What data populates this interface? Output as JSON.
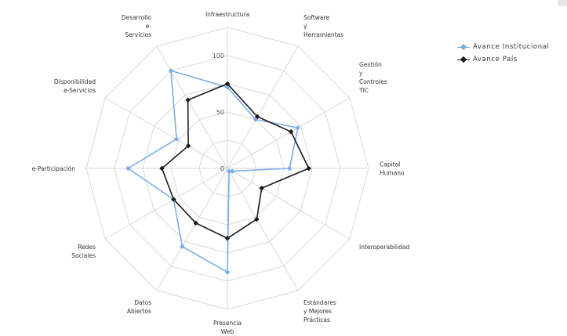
{
  "chart_data": {
    "type": "radar",
    "title": "",
    "categories": [
      "Infraestructura",
      "Software\ny\nHerramientas",
      "Gestión\ny\nControles\nTIC",
      "Capital\nHumano",
      "Interoperabilidad",
      "Estándares\ny Mejores\nPrácticas",
      "Presencia\nWeb",
      "Datos\nAbiertos",
      "Redes\nSociales",
      "e-Participación",
      "Disponibilidad\ne-Servicios",
      "Desarrollo\ne-\nServicios"
    ],
    "rlim": [
      0,
      100
    ],
    "ticks": [
      0,
      50,
      100
    ],
    "grid": true,
    "legend_position": "top-right",
    "series": [
      {
        "name": "Avance Institucional",
        "color": "#7aaee6",
        "marker": "diamond",
        "values": [
          72,
          50,
          72,
          55,
          5,
          3,
          92,
          80,
          55,
          88,
          52,
          100
        ]
      },
      {
        "name": "Avance País",
        "color": "#1a1a1a",
        "marker": "diamond",
        "values": [
          75,
          53,
          65,
          72,
          35,
          52,
          62,
          56,
          55,
          58,
          40,
          70
        ]
      }
    ]
  },
  "legend": {
    "items": [
      {
        "label": "Avance Institucional",
        "color": "#7aaee6"
      },
      {
        "label": "Avance País",
        "color": "#1a1a1a"
      }
    ]
  }
}
